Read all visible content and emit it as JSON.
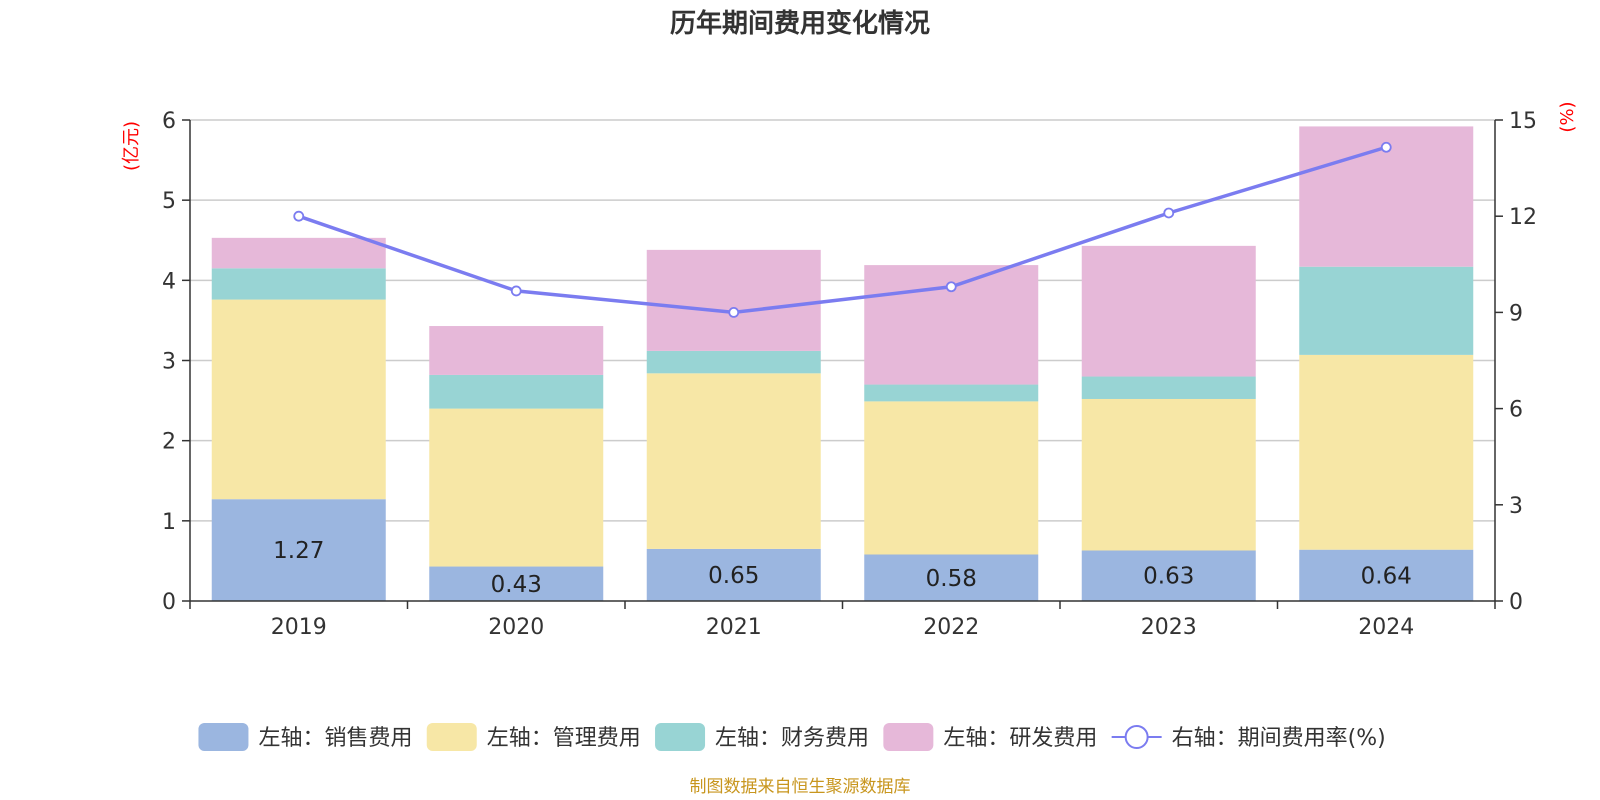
{
  "chart_data": {
    "type": "bar",
    "stacked": true,
    "title": "历年期间费用变化情况",
    "categories": [
      "2019",
      "2020",
      "2021",
      "2022",
      "2023",
      "2024"
    ],
    "y_left": {
      "unit": "(亿元)",
      "ylim": [
        0,
        6
      ],
      "ticks": [
        "0",
        "1",
        "2",
        "3",
        "4",
        "5",
        "6"
      ]
    },
    "y_right": {
      "unit": "(%)",
      "ylim": [
        0,
        15
      ],
      "ticks": [
        "0",
        "3",
        "6",
        "9",
        "12",
        "15"
      ]
    },
    "series": [
      {
        "name": "左轴：销售费用",
        "color": "#9bb6e0",
        "axis": "left",
        "values": [
          1.27,
          0.43,
          0.65,
          0.58,
          0.63,
          0.64
        ],
        "labels": [
          "1.27",
          "0.43",
          "0.65",
          "0.58",
          "0.63",
          "0.64"
        ]
      },
      {
        "name": "左轴：管理费用",
        "color": "#f7e7a6",
        "axis": "left",
        "values": [
          2.49,
          1.97,
          2.19,
          1.91,
          1.89,
          2.43
        ]
      },
      {
        "name": "左轴：财务费用",
        "color": "#98d4d4",
        "axis": "left",
        "values": [
          0.39,
          0.42,
          0.28,
          0.21,
          0.28,
          1.1
        ]
      },
      {
        "name": "左轴：研发费用",
        "color": "#e6b8d9",
        "axis": "left",
        "values": [
          0.38,
          0.61,
          1.26,
          1.49,
          1.63,
          1.75
        ]
      }
    ],
    "line": {
      "name": "右轴：期间费用率(%)",
      "color": "#7b7cf0",
      "axis": "right",
      "values": [
        12.0,
        9.67,
        9.0,
        9.8,
        12.1,
        14.15
      ]
    },
    "grid": true,
    "legend": "bottom"
  },
  "source_note": "制图数据来自恒生聚源数据库"
}
